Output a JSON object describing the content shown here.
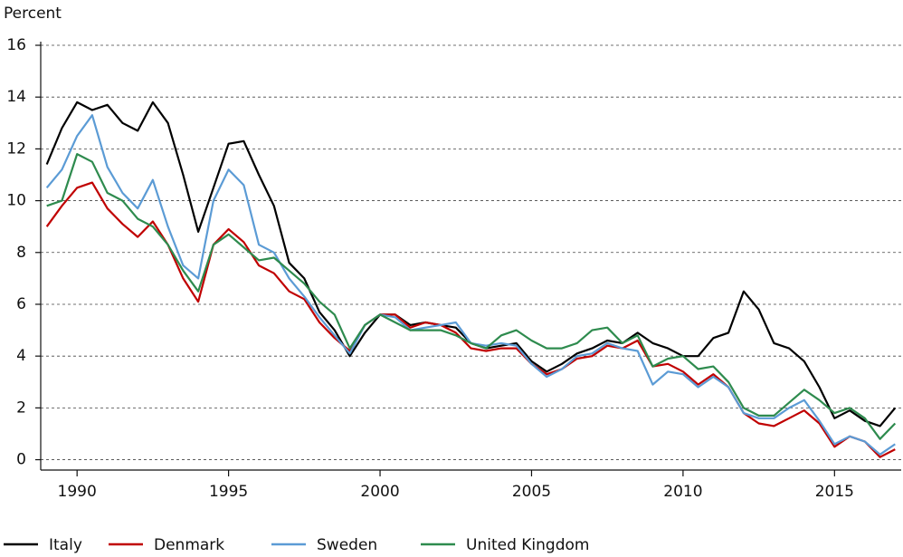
{
  "chart_data": {
    "type": "line",
    "y_label": "Percent",
    "x": [
      1989.0,
      1989.5,
      1990.0,
      1990.5,
      1991.0,
      1991.5,
      1992.0,
      1992.5,
      1993.0,
      1993.5,
      1994.0,
      1994.5,
      1995.0,
      1995.5,
      1996.0,
      1996.5,
      1997.0,
      1997.5,
      1998.0,
      1998.5,
      1999.0,
      1999.5,
      2000.0,
      2000.5,
      2001.0,
      2001.5,
      2002.0,
      2002.5,
      2003.0,
      2003.5,
      2004.0,
      2004.5,
      2005.0,
      2005.5,
      2006.0,
      2006.5,
      2007.0,
      2007.5,
      2008.0,
      2008.5,
      2009.0,
      2009.5,
      2010.0,
      2010.5,
      2011.0,
      2011.5,
      2012.0,
      2012.5,
      2013.0,
      2013.5,
      2014.0,
      2014.5,
      2015.0,
      2015.5,
      2016.0,
      2016.5,
      2017.0
    ],
    "series": [
      {
        "name": "Italy",
        "color": "#000000",
        "values": [
          11.4,
          12.8,
          13.8,
          13.5,
          13.7,
          13.0,
          12.7,
          13.8,
          13.0,
          11.0,
          8.8,
          10.5,
          12.2,
          12.3,
          11.0,
          9.8,
          7.6,
          7.0,
          5.7,
          5.0,
          4.0,
          4.9,
          5.6,
          5.6,
          5.2,
          5.3,
          5.2,
          5.1,
          4.5,
          4.3,
          4.4,
          4.5,
          3.8,
          3.4,
          3.7,
          4.1,
          4.3,
          4.6,
          4.5,
          4.9,
          4.5,
          4.3,
          4.0,
          4.0,
          4.7,
          4.9,
          6.5,
          5.8,
          4.5,
          4.3,
          3.8,
          2.8,
          1.6,
          1.9,
          1.5,
          1.3,
          2.0
        ]
      },
      {
        "name": "Denmark",
        "color": "#c00000",
        "values": [
          9.0,
          9.8,
          10.5,
          10.7,
          9.7,
          9.1,
          8.6,
          9.2,
          8.3,
          7.0,
          6.1,
          8.3,
          8.9,
          8.4,
          7.5,
          7.2,
          6.5,
          6.2,
          5.3,
          4.7,
          4.2,
          5.2,
          5.6,
          5.6,
          5.1,
          5.3,
          5.2,
          4.9,
          4.3,
          4.2,
          4.3,
          4.3,
          3.7,
          3.3,
          3.5,
          3.9,
          4.0,
          4.4,
          4.3,
          4.6,
          3.6,
          3.7,
          3.4,
          2.9,
          3.3,
          2.8,
          1.8,
          1.4,
          1.3,
          1.6,
          1.9,
          1.4,
          0.5,
          0.9,
          0.7,
          0.1,
          0.4
        ]
      },
      {
        "name": "Sweden",
        "color": "#5b9bd5",
        "values": [
          10.5,
          11.2,
          12.5,
          13.3,
          11.3,
          10.3,
          9.7,
          10.8,
          9.0,
          7.5,
          7.0,
          10.0,
          11.2,
          10.6,
          8.3,
          8.0,
          7.0,
          6.3,
          5.5,
          4.8,
          4.1,
          5.2,
          5.6,
          5.5,
          5.0,
          5.1,
          5.2,
          5.3,
          4.5,
          4.4,
          4.5,
          4.4,
          3.7,
          3.2,
          3.5,
          4.0,
          4.1,
          4.5,
          4.3,
          4.2,
          2.9,
          3.4,
          3.3,
          2.8,
          3.2,
          2.8,
          1.8,
          1.6,
          1.6,
          2.0,
          2.3,
          1.5,
          0.6,
          0.9,
          0.7,
          0.2,
          0.6
        ]
      },
      {
        "name": "United Kingdom",
        "color": "#2e8b4e",
        "values": [
          9.8,
          10.0,
          11.8,
          11.5,
          10.3,
          10.0,
          9.3,
          9.0,
          8.3,
          7.3,
          6.5,
          8.3,
          8.7,
          8.2,
          7.7,
          7.8,
          7.3,
          6.8,
          6.1,
          5.6,
          4.3,
          5.2,
          5.6,
          5.3,
          5.0,
          5.0,
          5.0,
          4.8,
          4.5,
          4.3,
          4.8,
          5.0,
          4.6,
          4.3,
          4.3,
          4.5,
          5.0,
          5.1,
          4.5,
          4.8,
          3.6,
          3.9,
          4.0,
          3.5,
          3.6,
          3.0,
          2.0,
          1.7,
          1.7,
          2.2,
          2.7,
          2.3,
          1.8,
          2.0,
          1.6,
          0.8,
          1.4
        ]
      }
    ],
    "xlim": [
      1988.8,
      2017.2
    ],
    "xticks": [
      1990,
      1995,
      2000,
      2005,
      2010,
      2015
    ],
    "ylim": [
      -0.4,
      16
    ],
    "yticks": [
      0,
      2,
      4,
      6,
      8,
      10,
      12,
      14,
      16
    ],
    "grid": true,
    "legend": "bottom"
  }
}
